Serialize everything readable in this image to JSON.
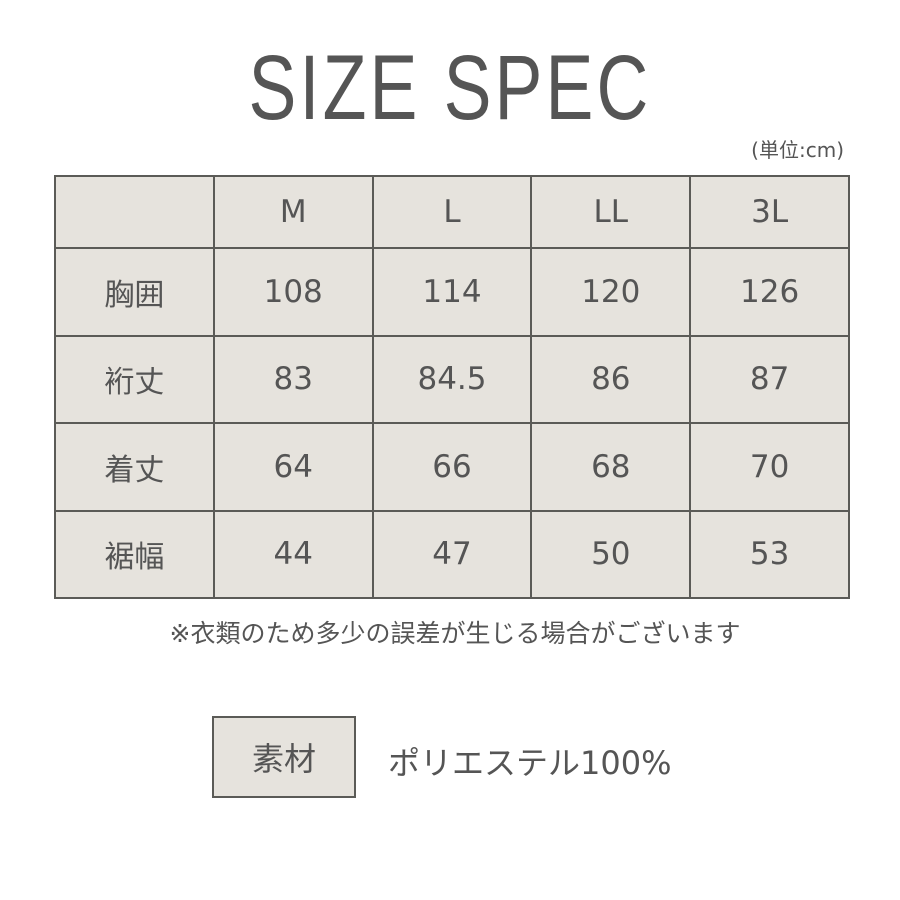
{
  "title": "SIZE SPEC",
  "unit": "(単位:cm)",
  "table": {
    "columns": [
      "",
      "M",
      "L",
      "LL",
      "3L"
    ],
    "rows": [
      {
        "label": "胸囲",
        "values": [
          "108",
          "114",
          "120",
          "126"
        ]
      },
      {
        "label": "裄丈",
        "values": [
          "83",
          "84.5",
          "86",
          "87"
        ]
      },
      {
        "label": "着丈",
        "values": [
          "64",
          "66",
          "68",
          "70"
        ]
      },
      {
        "label": "裾幅",
        "values": [
          "44",
          "47",
          "50",
          "53"
        ]
      }
    ]
  },
  "note": "※衣類のため多少の誤差が生じる場合がございます",
  "material": {
    "label": "素材",
    "value": "ポリエステル100%"
  },
  "colors": {
    "cell_bg": "#e6e3dd",
    "border": "#5b5b57",
    "text": "#555555"
  }
}
